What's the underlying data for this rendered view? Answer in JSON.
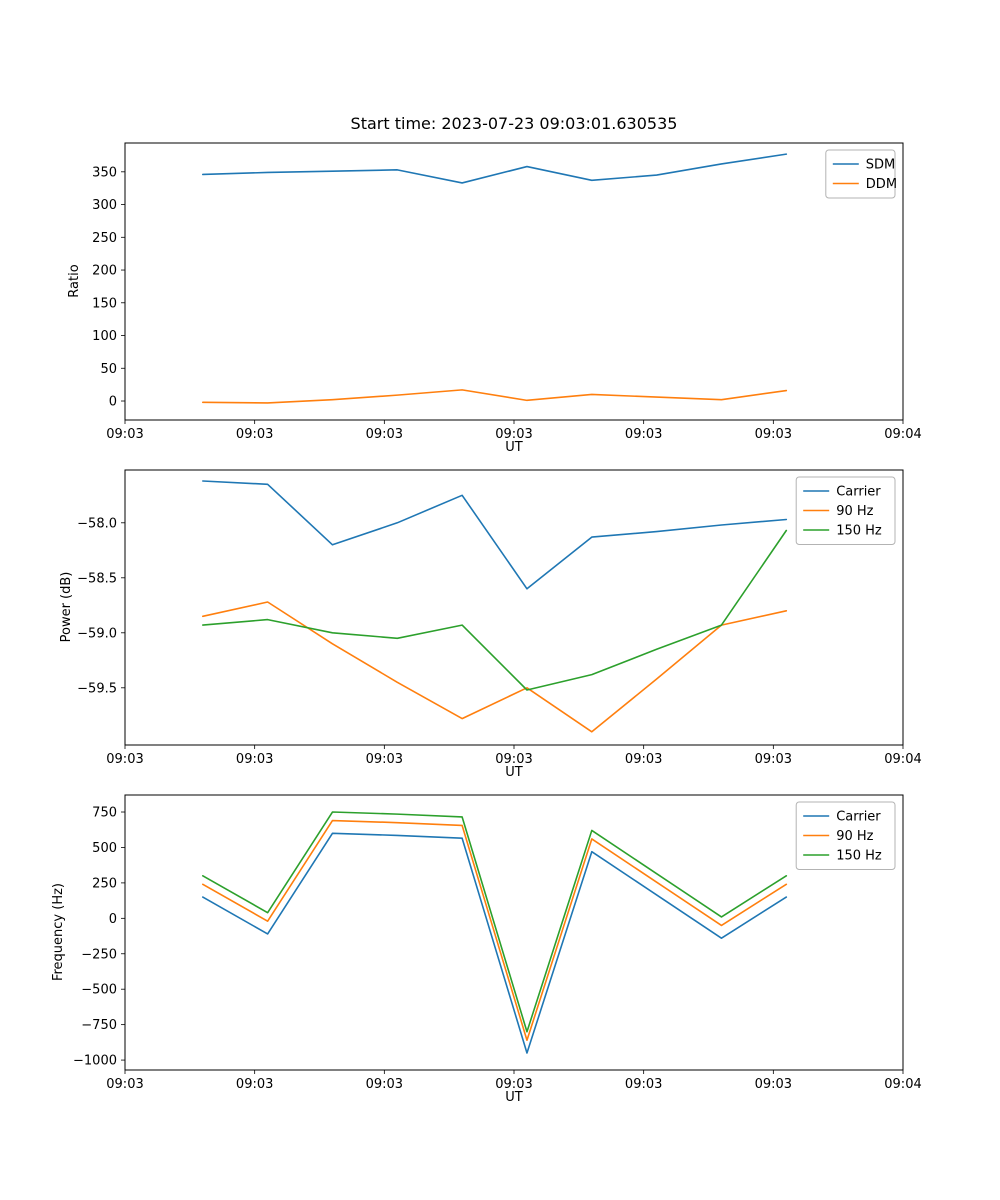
{
  "figure": {
    "background": "#ffffff"
  },
  "chart_data": [
    {
      "type": "line",
      "title": "Start time: 2023-07-23 09:03:01.630535",
      "xlabel": "UT",
      "ylabel": "Ratio",
      "legend_position": "upper right",
      "xlim": [
        0,
        60
      ],
      "ylim": [
        -29,
        394
      ],
      "xticks": [
        0,
        10,
        20,
        30,
        40,
        50,
        60
      ],
      "xticklabels": [
        "09:03",
        "09:03",
        "09:03",
        "09:03",
        "09:03",
        "09:03",
        "09:04"
      ],
      "ytickvalues": [
        0,
        50,
        100,
        150,
        200,
        250,
        300,
        350
      ],
      "yticklabels": [
        "0",
        "50",
        "100",
        "150",
        "200",
        "250",
        "300",
        "350"
      ],
      "x": [
        6,
        11,
        16,
        21,
        26,
        31,
        36,
        41,
        46,
        51
      ],
      "series": [
        {
          "name": "SDM",
          "color": "#1f77b4",
          "values": [
            346,
            349,
            351,
            353,
            333,
            358,
            337,
            345,
            362,
            377
          ]
        },
        {
          "name": "DDM",
          "color": "#ff7f0e",
          "values": [
            -2,
            -3,
            2,
            9,
            17,
            1,
            10,
            6,
            2,
            16
          ]
        }
      ]
    },
    {
      "type": "line",
      "title": "",
      "xlabel": "UT",
      "ylabel": "Power (dB)",
      "legend_position": "upper right",
      "xlim": [
        0,
        60
      ],
      "ylim": [
        -60.02,
        -57.52
      ],
      "xticks": [
        0,
        10,
        20,
        30,
        40,
        50,
        60
      ],
      "xticklabels": [
        "09:03",
        "09:03",
        "09:03",
        "09:03",
        "09:03",
        "09:03",
        "09:04"
      ],
      "ytickvalues": [
        -59.5,
        -59.0,
        -58.5,
        -58.0
      ],
      "yticklabels": [
        "−59.5",
        "−59.0",
        "−58.5",
        "−58.0"
      ],
      "x": [
        6,
        11,
        16,
        21,
        26,
        31,
        36,
        41,
        46,
        51
      ],
      "series": [
        {
          "name": "Carrier",
          "color": "#1f77b4",
          "values": [
            -57.62,
            -57.65,
            -58.2,
            -58.0,
            -57.75,
            -58.6,
            -58.13,
            -58.08,
            -58.02,
            -57.97
          ]
        },
        {
          "name": "90 Hz",
          "color": "#ff7f0e",
          "values": [
            -58.85,
            -58.72,
            -59.1,
            -59.45,
            -59.78,
            -59.5,
            -59.9,
            -59.42,
            -58.93,
            -58.8
          ]
        },
        {
          "name": "150 Hz",
          "color": "#2ca02c",
          "values": [
            -58.93,
            -58.88,
            -59.0,
            -59.05,
            -58.93,
            -59.52,
            -59.38,
            -59.15,
            -58.93,
            -58.07
          ]
        }
      ]
    },
    {
      "type": "line",
      "title": "",
      "xlabel": "UT",
      "ylabel": "Frequency (Hz)",
      "legend_position": "upper right",
      "xlim": [
        0,
        60
      ],
      "ylim": [
        -1070,
        870
      ],
      "xticks": [
        0,
        10,
        20,
        30,
        40,
        50,
        60
      ],
      "xticklabels": [
        "09:03",
        "09:03",
        "09:03",
        "09:03",
        "09:03",
        "09:03",
        "09:04"
      ],
      "ytickvalues": [
        -1000,
        -750,
        -500,
        -250,
        0,
        250,
        500,
        750
      ],
      "yticklabels": [
        "−1000",
        "−750",
        "−500",
        "−250",
        "0",
        "250",
        "500",
        "750"
      ],
      "x": [
        6,
        11,
        16,
        21,
        26,
        31,
        36,
        41,
        46,
        51
      ],
      "series": [
        {
          "name": "Carrier",
          "color": "#1f77b4",
          "values": [
            150,
            -110,
            600,
            585,
            565,
            -950,
            470,
            165,
            -140,
            150
          ]
        },
        {
          "name": "90 Hz",
          "color": "#ff7f0e",
          "values": [
            240,
            -20,
            690,
            675,
            655,
            -860,
            560,
            255,
            -50,
            240
          ]
        },
        {
          "name": "150 Hz",
          "color": "#2ca02c",
          "values": [
            300,
            40,
            750,
            735,
            715,
            -800,
            620,
            315,
            10,
            300
          ]
        }
      ]
    }
  ]
}
